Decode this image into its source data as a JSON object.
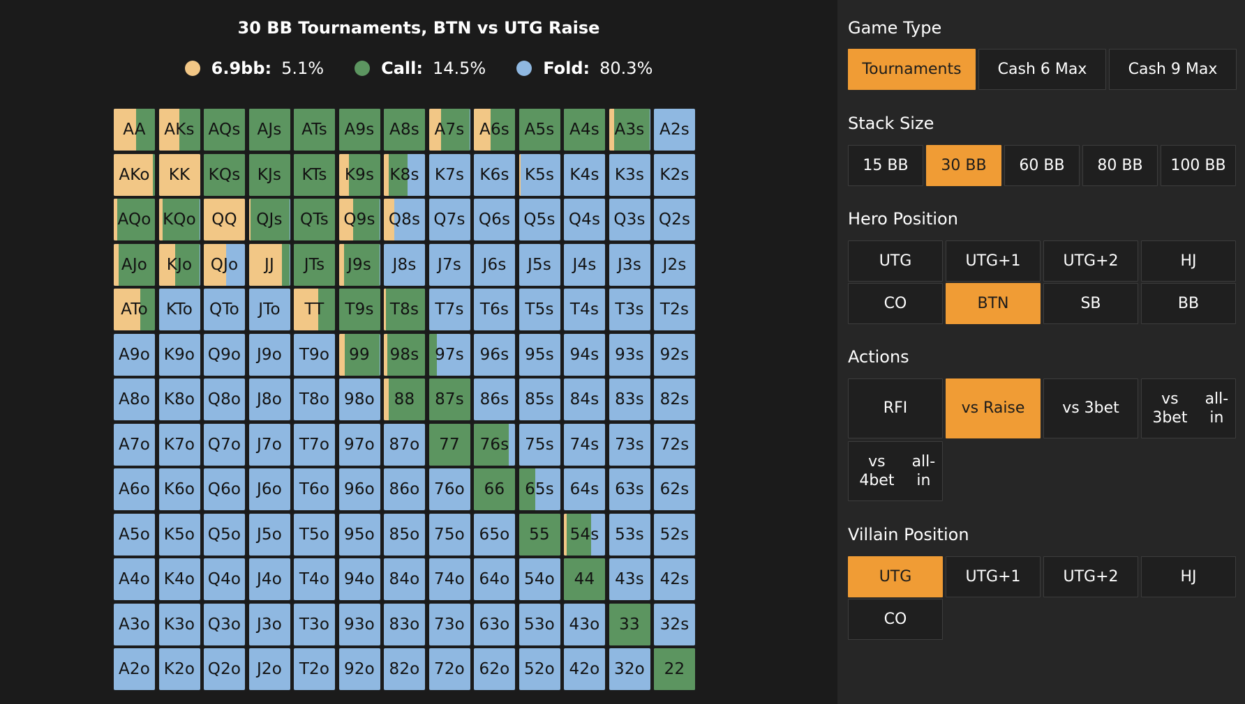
{
  "chart_data": {
    "type": "heatmap",
    "title": "30 BB Tournaments, BTN vs UTG Raise",
    "legend": [
      {
        "label": "6.9bb:",
        "value": "5.1%",
        "color": "#f2c786"
      },
      {
        "label": "Call:",
        "value": "14.5%",
        "color": "#5c9560"
      },
      {
        "label": "Fold:",
        "value": "80.3%",
        "color": "#8fb8e1"
      }
    ],
    "colors": {
      "raise": "#f2c786",
      "call": "#5c9560",
      "fold": "#8fb8e1"
    },
    "grid": [
      [
        "AA",
        "AKs",
        "AQs",
        "AJs",
        "ATs",
        "A9s",
        "A8s",
        "A7s",
        "A6s",
        "A5s",
        "A4s",
        "A3s",
        "A2s"
      ],
      [
        "AKo",
        "KK",
        "KQs",
        "KJs",
        "KTs",
        "K9s",
        "K8s",
        "K7s",
        "K6s",
        "K5s",
        "K4s",
        "K3s",
        "K2s"
      ],
      [
        "AQo",
        "KQo",
        "QQ",
        "QJs",
        "QTs",
        "Q9s",
        "Q8s",
        "Q7s",
        "Q6s",
        "Q5s",
        "Q4s",
        "Q3s",
        "Q2s"
      ],
      [
        "AJo",
        "KJo",
        "QJo",
        "JJ",
        "JTs",
        "J9s",
        "J8s",
        "J7s",
        "J6s",
        "J5s",
        "J4s",
        "J3s",
        "J2s"
      ],
      [
        "ATo",
        "KTo",
        "QTo",
        "JTo",
        "TT",
        "T9s",
        "T8s",
        "T7s",
        "T6s",
        "T5s",
        "T4s",
        "T3s",
        "T2s"
      ],
      [
        "A9o",
        "K9o",
        "Q9o",
        "J9o",
        "T9o",
        "99",
        "98s",
        "97s",
        "96s",
        "95s",
        "94s",
        "93s",
        "92s"
      ],
      [
        "A8o",
        "K8o",
        "Q8o",
        "J8o",
        "T8o",
        "98o",
        "88",
        "87s",
        "86s",
        "85s",
        "84s",
        "83s",
        "82s"
      ],
      [
        "A7o",
        "K7o",
        "Q7o",
        "J7o",
        "T7o",
        "97o",
        "87o",
        "77",
        "76s",
        "75s",
        "74s",
        "73s",
        "72s"
      ],
      [
        "A6o",
        "K6o",
        "Q6o",
        "J6o",
        "T6o",
        "96o",
        "86o",
        "76o",
        "66",
        "65s",
        "64s",
        "63s",
        "62s"
      ],
      [
        "A5o",
        "K5o",
        "Q5o",
        "J5o",
        "T5o",
        "95o",
        "85o",
        "75o",
        "65o",
        "55",
        "54s",
        "53s",
        "52s"
      ],
      [
        "A4o",
        "K4o",
        "Q4o",
        "J4o",
        "T4o",
        "94o",
        "84o",
        "74o",
        "64o",
        "54o",
        "44",
        "43s",
        "42s"
      ],
      [
        "A3o",
        "K3o",
        "Q3o",
        "J3o",
        "T3o",
        "93o",
        "83o",
        "73o",
        "63o",
        "53o",
        "43o",
        "33",
        "32s"
      ],
      [
        "A2o",
        "K2o",
        "Q2o",
        "J2o",
        "T2o",
        "92o",
        "82o",
        "72o",
        "62o",
        "52o",
        "42o",
        "32o",
        "22"
      ]
    ],
    "frequencies": {
      "AA": [
        0.55,
        0.45
      ],
      "AKs": [
        0.5,
        0.5
      ],
      "AQs": [
        0,
        1
      ],
      "AJs": [
        0,
        1
      ],
      "ATs": [
        0,
        1
      ],
      "A9s": [
        0,
        1
      ],
      "A8s": [
        0,
        1
      ],
      "A7s": [
        0.3,
        0.7
      ],
      "A6s": [
        0.4,
        0.6
      ],
      "A5s": [
        0,
        1
      ],
      "A4s": [
        0,
        1
      ],
      "A3s": [
        0.12,
        0.88
      ],
      "A2s": [
        0,
        0
      ],
      "AKo": [
        0.95,
        0.05
      ],
      "KK": [
        1,
        0
      ],
      "KQs": [
        0,
        1
      ],
      "KJs": [
        0,
        1
      ],
      "KTs": [
        0,
        1
      ],
      "K9s": [
        0.25,
        0.75
      ],
      "K8s": [
        0.12,
        0.45
      ],
      "K5s": [
        0.05,
        0
      ],
      "AQo": [
        0.08,
        0.92
      ],
      "KQo": [
        0.1,
        0.9
      ],
      "QQ": [
        1,
        0
      ],
      "QJs": [
        0.05,
        0.95
      ],
      "QTs": [
        0,
        1
      ],
      "Q9s": [
        0.35,
        0.65
      ],
      "Q8s": [
        0.25,
        0
      ],
      "AJo": [
        0.12,
        0.88
      ],
      "KJo": [
        0.4,
        0.6
      ],
      "QJo": [
        0.55,
        0
      ],
      "JJ": [
        0.8,
        0.2
      ],
      "JTs": [
        0,
        1
      ],
      "J9s": [
        0.12,
        0.88
      ],
      "ATo": [
        0.65,
        0.35
      ],
      "TT": [
        0.6,
        0.4
      ],
      "T9s": [
        0,
        1
      ],
      "T8s": [
        0.05,
        0.95
      ],
      "99": [
        0.15,
        0.85
      ],
      "98s": [
        0.08,
        0.92
      ],
      "97s": [
        0,
        0.2
      ],
      "88": [
        0.12,
        0.88
      ],
      "87s": [
        0,
        1
      ],
      "77": [
        0,
        1
      ],
      "76s": [
        0,
        0.85
      ],
      "66": [
        0,
        1
      ],
      "65s": [
        0,
        0.4
      ],
      "55": [
        0,
        1
      ],
      "54s": [
        0.06,
        0.6
      ],
      "44": [
        0,
        1
      ],
      "33": [
        0,
        1
      ],
      "22": [
        0,
        1
      ]
    }
  },
  "panel": {
    "game_type": {
      "label": "Game Type",
      "options": [
        "Tournaments",
        "Cash 6 Max",
        "Cash 9 Max"
      ],
      "selected": "Tournaments"
    },
    "stack_size": {
      "label": "Stack Size",
      "options": [
        "15 BB",
        "30 BB",
        "60 BB",
        "80 BB",
        "100 BB"
      ],
      "selected": "30 BB"
    },
    "hero_position": {
      "label": "Hero Position",
      "options": [
        "UTG",
        "UTG+1",
        "UTG+2",
        "HJ",
        "CO",
        "BTN",
        "SB",
        "BB"
      ],
      "selected": "BTN"
    },
    "actions": {
      "label": "Actions",
      "options": [
        "RFI",
        "vs Raise",
        "vs 3bet",
        "vs 3bet all-in",
        "vs 4bet all-in"
      ],
      "selected": "vs Raise"
    },
    "villain_position": {
      "label": "Villain Position",
      "options": [
        "UTG",
        "UTG+1",
        "UTG+2",
        "HJ",
        "CO"
      ],
      "selected": "UTG"
    }
  }
}
